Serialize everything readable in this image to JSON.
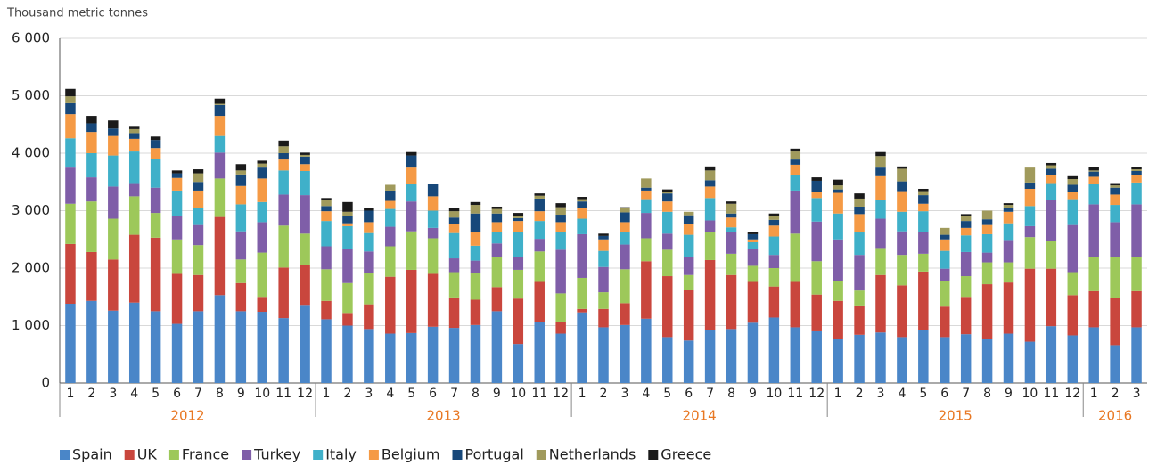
{
  "chart_data": {
    "type": "stacked_bar",
    "y_axis_label": "Thousand metric tonnes",
    "ylim": [
      0,
      6000
    ],
    "yticks": [
      0,
      {
        "value": 1000,
        "label": "1 000"
      },
      {
        "value": 2000,
        "label": "2 000"
      },
      {
        "value": 3000,
        "label": "3 000"
      },
      {
        "value": 4000,
        "label": "4 000"
      },
      {
        "value": 5000,
        "label": "5 000"
      },
      {
        "value": 6000,
        "label": "6 000"
      }
    ],
    "grid": true,
    "legend": "bottom",
    "categories": [
      {
        "label": "1",
        "group": "2012"
      },
      {
        "label": "2",
        "group": "2012"
      },
      {
        "label": "3",
        "group": "2012"
      },
      {
        "label": "4",
        "group": "2012"
      },
      {
        "label": "5",
        "group": "2012"
      },
      {
        "label": "6",
        "group": "2012"
      },
      {
        "label": "7",
        "group": "2012"
      },
      {
        "label": "8",
        "group": "2012"
      },
      {
        "label": "9",
        "group": "2012"
      },
      {
        "label": "10",
        "group": "2012"
      },
      {
        "label": "11",
        "group": "2012"
      },
      {
        "label": "12",
        "group": "2012"
      },
      {
        "label": "1",
        "group": "2013"
      },
      {
        "label": "2",
        "group": "2013"
      },
      {
        "label": "3",
        "group": "2013"
      },
      {
        "label": "4",
        "group": "2013"
      },
      {
        "label": "5",
        "group": "2013"
      },
      {
        "label": "6",
        "group": "2013"
      },
      {
        "label": "7",
        "group": "2013"
      },
      {
        "label": "8",
        "group": "2013"
      },
      {
        "label": "9",
        "group": "2013"
      },
      {
        "label": "10",
        "group": "2013"
      },
      {
        "label": "11",
        "group": "2013"
      },
      {
        "label": "12",
        "group": "2013"
      },
      {
        "label": "1",
        "group": "2014"
      },
      {
        "label": "2",
        "group": "2014"
      },
      {
        "label": "3",
        "group": "2014"
      },
      {
        "label": "4",
        "group": "2014"
      },
      {
        "label": "5",
        "group": "2014"
      },
      {
        "label": "6",
        "group": "2014"
      },
      {
        "label": "7",
        "group": "2014"
      },
      {
        "label": "8",
        "group": "2014"
      },
      {
        "label": "9",
        "group": "2014"
      },
      {
        "label": "10",
        "group": "2014"
      },
      {
        "label": "11",
        "group": "2014"
      },
      {
        "label": "12",
        "group": "2014"
      },
      {
        "label": "1",
        "group": "2015"
      },
      {
        "label": "2",
        "group": "2015"
      },
      {
        "label": "3",
        "group": "2015"
      },
      {
        "label": "4",
        "group": "2015"
      },
      {
        "label": "5",
        "group": "2015"
      },
      {
        "label": "6",
        "group": "2015"
      },
      {
        "label": "7",
        "group": "2015"
      },
      {
        "label": "8",
        "group": "2015"
      },
      {
        "label": "9",
        "group": "2015"
      },
      {
        "label": "10",
        "group": "2015"
      },
      {
        "label": "11",
        "group": "2015"
      },
      {
        "label": "12",
        "group": "2015"
      },
      {
        "label": "1",
        "group": "2016"
      },
      {
        "label": "2",
        "group": "2016"
      },
      {
        "label": "3",
        "group": "2016"
      }
    ],
    "series": [
      {
        "name": "Spain",
        "color": "#4a86c8",
        "values": [
          1380,
          1430,
          1260,
          1400,
          1250,
          1030,
          1250,
          1530,
          1250,
          1240,
          1130,
          1360,
          1110,
          1000,
          940,
          860,
          870,
          980,
          960,
          1010,
          1250,
          680,
          1060,
          860,
          1230,
          970,
          1010,
          1120,
          800,
          740,
          920,
          940,
          1050,
          1140,
          970,
          900,
          770,
          840,
          880,
          800,
          920,
          800,
          850,
          760,
          860,
          720,
          990,
          830,
          970,
          660,
          970
        ]
      },
      {
        "name": "UK",
        "color": "#c9463d",
        "values": [
          1040,
          850,
          890,
          1180,
          1280,
          870,
          630,
          1360,
          490,
          260,
          880,
          690,
          320,
          220,
          430,
          990,
          1100,
          920,
          530,
          440,
          420,
          790,
          700,
          210,
          60,
          320,
          380,
          1000,
          1060,
          880,
          1220,
          940,
          710,
          540,
          790,
          640,
          660,
          510,
          1000,
          900,
          1020,
          530,
          650,
          960,
          890,
          1270,
          1000,
          700,
          630,
          820,
          630
        ]
      },
      {
        "name": "France",
        "color": "#9dc85a",
        "values": [
          700,
          880,
          710,
          670,
          430,
          600,
          520,
          670,
          410,
          770,
          730,
          550,
          550,
          520,
          550,
          530,
          670,
          620,
          440,
          470,
          530,
          500,
          530,
          490,
          540,
          290,
          590,
          400,
          460,
          260,
          480,
          370,
          280,
          320,
          840,
          580,
          340,
          260,
          470,
          530,
          310,
          440,
          360,
          380,
          350,
          550,
          490,
          400,
          600,
          720,
          600
        ]
      },
      {
        "name": "Turkey",
        "color": "#7f5ea8",
        "values": [
          630,
          420,
          560,
          230,
          440,
          400,
          350,
          450,
          490,
          530,
          540,
          670,
          400,
          590,
          370,
          340,
          520,
          180,
          240,
          210,
          230,
          220,
          220,
          760,
          760,
          440,
          430,
          440,
          280,
          320,
          210,
          370,
          300,
          230,
          750,
          690,
          730,
          620,
          510,
          410,
          380,
          220,
          420,
          170,
          390,
          190,
          700,
          820,
          910,
          600,
          910
        ]
      },
      {
        "name": "Italy",
        "color": "#3fb0c9",
        "values": [
          510,
          420,
          540,
          550,
          500,
          450,
          300,
          290,
          470,
          350,
          420,
          420,
          440,
          400,
          320,
          310,
          310,
          300,
          440,
          260,
          200,
          440,
          310,
          310,
          270,
          280,
          210,
          240,
          380,
          380,
          390,
          90,
          110,
          320,
          270,
          410,
          450,
          390,
          320,
          340,
          360,
          310,
          290,
          320,
          290,
          350,
          300,
          450,
          360,
          300,
          380
        ]
      },
      {
        "name": "Belgium",
        "color": "#f59a45",
        "values": [
          420,
          370,
          340,
          220,
          190,
          220,
          300,
          350,
          320,
          410,
          190,
          120,
          170,
          50,
          190,
          140,
          280,
          250,
          160,
          230,
          170,
          190,
          170,
          170,
          180,
          200,
          180,
          150,
          180,
          180,
          200,
          170,
          50,
          190,
          180,
          100,
          360,
          320,
          420,
          360,
          130,
          200,
          130,
          160,
          200,
          300,
          140,
          130,
          120,
          180,
          130
        ]
      },
      {
        "name": "Portugal",
        "color": "#17487a",
        "values": [
          190,
          150,
          130,
          100,
          140,
          80,
          150,
          190,
          200,
          190,
          110,
          130,
          90,
          120,
          200,
          180,
          210,
          210,
          110,
          330,
          150,
          50,
          220,
          130,
          120,
          60,
          170,
          50,
          140,
          160,
          110,
          70,
          90,
          100,
          90,
          200,
          60,
          130,
          150,
          170,
          150,
          80,
          120,
          100,
          70,
          110,
          110,
          120,
          90,
          120,
          70
        ]
      },
      {
        "name": "Netherlands",
        "color": "#a09a5c",
        "values": [
          120,
          0,
          0,
          70,
          0,
          0,
          150,
          20,
          70,
          70,
          120,
          30,
          100,
          80,
          0,
          100,
          0,
          0,
          110,
          150,
          80,
          40,
          50,
          130,
          40,
          0,
          70,
          160,
          30,
          60,
          170,
          170,
          0,
          70,
          140,
          0,
          70,
          140,
          200,
          220,
          70,
          120,
          80,
          150,
          50,
          260,
          60,
          100,
          20,
          40,
          30
        ]
      },
      {
        "name": "Greece",
        "color": "#1a1a1a",
        "values": [
          130,
          130,
          140,
          40,
          60,
          50,
          70,
          90,
          110,
          50,
          100,
          40,
          40,
          170,
          40,
          0,
          60,
          0,
          50,
          50,
          40,
          50,
          40,
          70,
          40,
          40,
          20,
          0,
          40,
          0,
          70,
          40,
          40,
          40,
          50,
          60,
          100,
          90,
          70,
          40,
          40,
          0,
          40,
          0,
          30,
          0,
          40,
          50,
          60,
          40,
          40
        ]
      }
    ]
  }
}
